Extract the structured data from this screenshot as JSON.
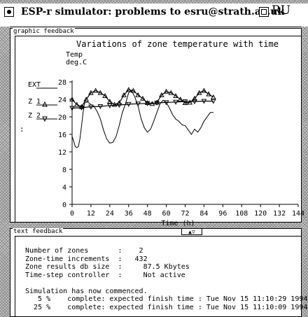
{
  "window": {
    "title": "ESP-r simulator:  problems to esru@strath.ac.uk",
    "background_window_title": "RU"
  },
  "graphic_panel": {
    "label": "graphic feedback"
  },
  "text_panel": {
    "label": "text feedback",
    "scroll_symbol": "▲▽",
    "lines": [
      "Number of zones       :    2",
      "Zone-time increments  :   432",
      "Zone results db size  :     87.5 Kbytes",
      "Time-step controller  :     Not active",
      "",
      "Simulation has now commenced.",
      "   5 %    complete: expected finish time : Tue Nov 15 11:10:29 1994",
      "  25 %    complete: expected finish time : Tue Nov 15 11:10:09 1994"
    ]
  },
  "chart_data": {
    "type": "line",
    "title": "Variations of zone temperature  with time",
    "ylabel": "Temp\ndeg.C",
    "xlabel": "Time (h)",
    "xlim": [
      0,
      144
    ],
    "ylim": [
      0,
      28
    ],
    "x_ticks": [
      0,
      12,
      24,
      36,
      48,
      60,
      72,
      84,
      96,
      108,
      120,
      132,
      144
    ],
    "y_ticks": [
      0,
      4,
      8,
      12,
      16,
      20,
      24,
      28
    ],
    "legend": [
      {
        "name": "EXT",
        "marker": "none"
      },
      {
        "name": "Z 1",
        "marker": "triangle-up"
      },
      {
        "name": "Z 2",
        "marker": "triangle-down"
      }
    ],
    "side_label": ":",
    "series": [
      {
        "name": "EXT",
        "x": [
          0,
          1,
          2,
          3,
          4,
          5,
          6,
          7,
          8,
          10,
          12,
          14,
          16,
          18,
          20,
          22,
          24,
          26,
          28,
          30,
          32,
          34,
          36,
          38,
          40,
          42,
          44,
          46,
          48,
          50,
          52,
          54,
          56,
          58,
          60,
          62,
          64,
          66,
          68,
          70,
          72,
          74,
          76,
          78,
          80,
          82,
          84,
          86,
          88,
          90
        ],
        "y": [
          15.5,
          14.5,
          13.2,
          13.0,
          13.2,
          15.0,
          18.0,
          21.0,
          23.2,
          23.4,
          22.8,
          22.4,
          21.2,
          19.5,
          17.0,
          15.0,
          14.0,
          14.2,
          15.5,
          18.0,
          21.0,
          23.0,
          25.5,
          26.0,
          24.5,
          22.5,
          19.5,
          17.5,
          16.5,
          17.2,
          19.0,
          21.0,
          23.0,
          23.8,
          23.3,
          22.0,
          20.5,
          19.5,
          19.0,
          18.2,
          18.0,
          17.0,
          16.0,
          17.2,
          16.5,
          17.5,
          19.0,
          20.0,
          21.0,
          21.0
        ]
      },
      {
        "name": "Z 1",
        "x": [
          0,
          3,
          6,
          9,
          12,
          15,
          18,
          21,
          24,
          27,
          30,
          33,
          36,
          39,
          42,
          45,
          48,
          51,
          54,
          57,
          60,
          63,
          66,
          69,
          72,
          75,
          78,
          81,
          84,
          87,
          90
        ],
        "y": [
          24.0,
          22.8,
          22.3,
          24.0,
          25.5,
          26.0,
          25.5,
          24.8,
          23.5,
          22.8,
          23.2,
          25.0,
          26.2,
          26.0,
          25.0,
          24.2,
          23.2,
          23.0,
          23.3,
          25.0,
          25.8,
          25.5,
          24.8,
          24.0,
          23.2,
          23.3,
          24.2,
          25.5,
          26.0,
          25.2,
          24.5
        ]
      },
      {
        "name": "Z 2",
        "x": [
          0,
          6,
          12,
          18,
          24,
          30,
          36,
          42,
          48,
          54,
          60,
          66,
          72,
          78,
          84,
          90
        ],
        "y": [
          22.0,
          22.1,
          22.3,
          22.4,
          22.6,
          22.7,
          22.9,
          23.0,
          23.1,
          23.2,
          23.3,
          23.4,
          23.5,
          23.5,
          23.6,
          23.6
        ]
      }
    ]
  }
}
